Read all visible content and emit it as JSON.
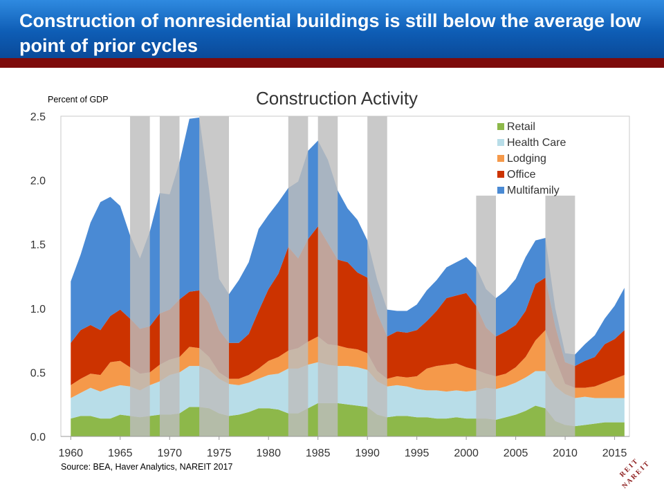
{
  "header": {
    "title": "Construction of nonresidential buildings is still below the average low point of prior cycles"
  },
  "source_note": "Source: BEA, Haver Analytics, NAREIT 2017",
  "logo_text": "REIT NAREIT",
  "colors": {
    "banner": "#1565c0",
    "banner_rule": "#7d0b0b",
    "Retail": "#8db84a",
    "Health Care": "#b8dde8",
    "Lodging": "#f5994a",
    "Office": "#cc3300",
    "Multifamily": "#4a8ad4",
    "recession": "#bdbdbd"
  },
  "chart_data": {
    "type": "area",
    "stacked": true,
    "title": "Construction Activity",
    "ylabel": "Percent of GDP",
    "xlabel": "",
    "ylim": [
      0,
      2.5
    ],
    "xlim": [
      1959,
      2016.5
    ],
    "yticks": [
      "0.0",
      "0.5",
      "1.0",
      "1.5",
      "2.0",
      "2.5"
    ],
    "xticks": [
      "1960",
      "1965",
      "1970",
      "1975",
      "1980",
      "1985",
      "1990",
      "1995",
      "2000",
      "2005",
      "2010",
      "2015"
    ],
    "legend_position": "top-right",
    "x": [
      1960,
      1961,
      1962,
      1963,
      1964,
      1965,
      1966,
      1967,
      1968,
      1969,
      1970,
      1971,
      1972,
      1973,
      1974,
      1975,
      1976,
      1977,
      1978,
      1979,
      1980,
      1981,
      1982,
      1983,
      1984,
      1985,
      1986,
      1987,
      1988,
      1989,
      1990,
      1991,
      1992,
      1993,
      1994,
      1995,
      1996,
      1997,
      1998,
      1999,
      2000,
      2001,
      2002,
      2003,
      2004,
      2005,
      2006,
      2007,
      2008,
      2009,
      2010,
      2011,
      2012,
      2013,
      2014,
      2015,
      2016
    ],
    "series": [
      {
        "name": "Retail",
        "values": [
          0.14,
          0.16,
          0.16,
          0.14,
          0.14,
          0.17,
          0.16,
          0.15,
          0.16,
          0.17,
          0.17,
          0.18,
          0.23,
          0.23,
          0.22,
          0.18,
          0.16,
          0.17,
          0.19,
          0.22,
          0.22,
          0.21,
          0.18,
          0.18,
          0.22,
          0.26,
          0.26,
          0.26,
          0.25,
          0.24,
          0.23,
          0.17,
          0.15,
          0.16,
          0.16,
          0.15,
          0.15,
          0.14,
          0.14,
          0.15,
          0.14,
          0.14,
          0.14,
          0.13,
          0.15,
          0.17,
          0.2,
          0.24,
          0.22,
          0.12,
          0.09,
          0.08,
          0.09,
          0.1,
          0.11,
          0.11,
          0.11
        ]
      },
      {
        "name": "Health Care",
        "values": [
          0.16,
          0.18,
          0.22,
          0.21,
          0.24,
          0.23,
          0.23,
          0.21,
          0.24,
          0.26,
          0.31,
          0.32,
          0.32,
          0.32,
          0.3,
          0.27,
          0.25,
          0.23,
          0.23,
          0.23,
          0.26,
          0.28,
          0.35,
          0.35,
          0.34,
          0.32,
          0.3,
          0.29,
          0.3,
          0.3,
          0.29,
          0.26,
          0.24,
          0.24,
          0.23,
          0.22,
          0.21,
          0.22,
          0.21,
          0.21,
          0.21,
          0.22,
          0.24,
          0.24,
          0.24,
          0.25,
          0.26,
          0.27,
          0.29,
          0.27,
          0.24,
          0.22,
          0.22,
          0.2,
          0.19,
          0.19,
          0.19
        ]
      },
      {
        "name": "Lodging",
        "values": [
          0.1,
          0.11,
          0.11,
          0.13,
          0.2,
          0.19,
          0.15,
          0.13,
          0.1,
          0.13,
          0.12,
          0.12,
          0.15,
          0.14,
          0.1,
          0.05,
          0.04,
          0.05,
          0.06,
          0.08,
          0.11,
          0.13,
          0.14,
          0.16,
          0.18,
          0.2,
          0.16,
          0.16,
          0.14,
          0.14,
          0.13,
          0.08,
          0.06,
          0.07,
          0.07,
          0.1,
          0.17,
          0.19,
          0.21,
          0.21,
          0.19,
          0.16,
          0.11,
          0.1,
          0.1,
          0.12,
          0.16,
          0.24,
          0.32,
          0.22,
          0.08,
          0.08,
          0.07,
          0.09,
          0.12,
          0.15,
          0.18
        ]
      },
      {
        "name": "Office",
        "values": [
          0.33,
          0.38,
          0.38,
          0.35,
          0.36,
          0.4,
          0.38,
          0.35,
          0.36,
          0.4,
          0.39,
          0.45,
          0.43,
          0.45,
          0.42,
          0.33,
          0.28,
          0.28,
          0.32,
          0.45,
          0.56,
          0.65,
          0.81,
          0.7,
          0.8,
          0.86,
          0.79,
          0.67,
          0.67,
          0.6,
          0.59,
          0.45,
          0.33,
          0.35,
          0.35,
          0.36,
          0.37,
          0.43,
          0.52,
          0.53,
          0.58,
          0.5,
          0.36,
          0.31,
          0.33,
          0.33,
          0.36,
          0.44,
          0.41,
          0.25,
          0.17,
          0.17,
          0.21,
          0.23,
          0.3,
          0.31,
          0.35
        ]
      },
      {
        "name": "Multifamily",
        "values": [
          0.48,
          0.59,
          0.8,
          1.0,
          0.93,
          0.81,
          0.65,
          0.55,
          0.74,
          0.94,
          0.9,
          1.07,
          1.35,
          1.35,
          0.88,
          0.4,
          0.38,
          0.49,
          0.56,
          0.64,
          0.58,
          0.56,
          0.46,
          0.6,
          0.69,
          0.67,
          0.65,
          0.54,
          0.42,
          0.41,
          0.29,
          0.26,
          0.21,
          0.16,
          0.17,
          0.2,
          0.24,
          0.24,
          0.24,
          0.26,
          0.28,
          0.3,
          0.3,
          0.3,
          0.32,
          0.36,
          0.42,
          0.34,
          0.31,
          0.14,
          0.07,
          0.09,
          0.13,
          0.17,
          0.2,
          0.26,
          0.33
        ]
      }
    ],
    "recession_bands": [
      [
        1966,
        1968
      ],
      [
        1969,
        1971
      ],
      [
        1973,
        1976
      ],
      [
        1982,
        1984
      ],
      [
        1985,
        1987
      ],
      [
        1990,
        1992
      ],
      [
        2001,
        2003
      ],
      [
        2008,
        2011
      ]
    ],
    "recession_top": 2.5,
    "recession_top_short": 1.88,
    "grid": false
  }
}
